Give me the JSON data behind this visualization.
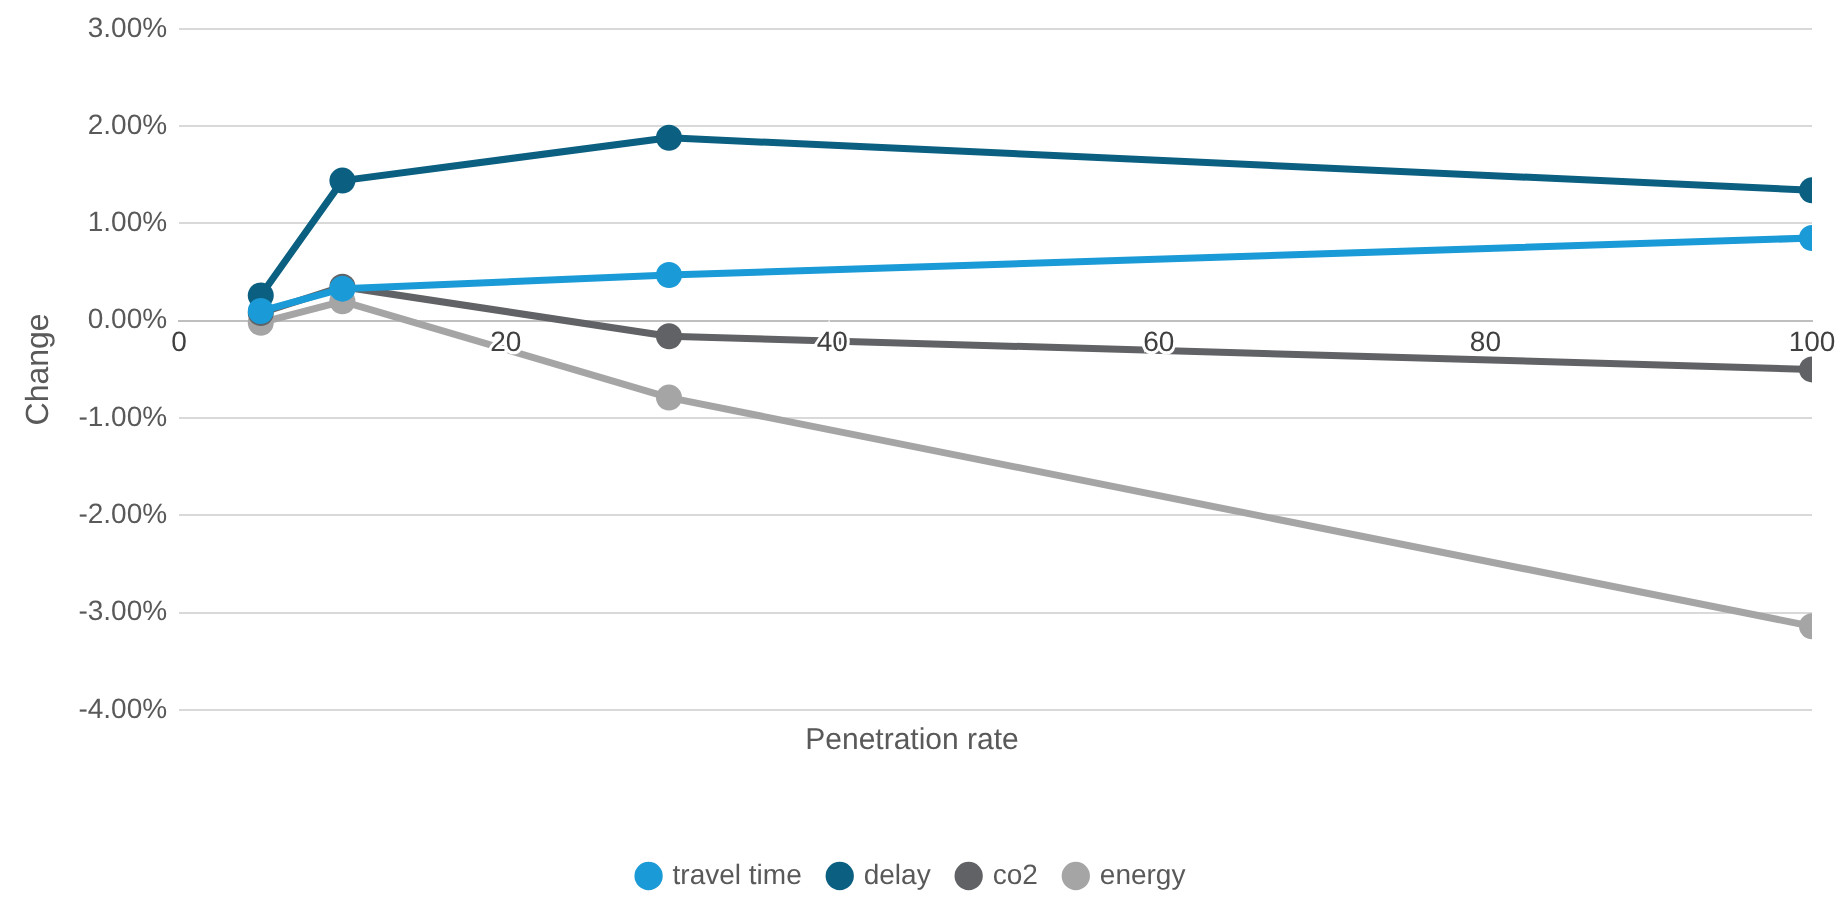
{
  "chart_data": {
    "type": "line",
    "xlabel": "Penetration rate",
    "ylabel": "Change",
    "x": [
      5,
      10,
      30,
      100
    ],
    "series": [
      {
        "name": "travel time",
        "color": "#1a9ad6",
        "values": [
          0.1,
          0.33,
          0.47,
          0.85
        ]
      },
      {
        "name": "delay",
        "color": "#0b5f80",
        "values": [
          0.26,
          1.44,
          1.88,
          1.34
        ]
      },
      {
        "name": "co2",
        "color": "#616265",
        "values": [
          0.08,
          0.35,
          -0.16,
          -0.5
        ]
      },
      {
        "name": "energy",
        "color": "#a5a5a5",
        "values": [
          -0.02,
          0.2,
          -0.79,
          -3.14
        ]
      }
    ],
    "xlim": [
      0,
      100
    ],
    "xticks": [
      0,
      20,
      40,
      60,
      80,
      100
    ],
    "ylim": [
      -4,
      3
    ],
    "yticks": [
      {
        "value": -4,
        "label": "-4.00%"
      },
      {
        "value": -3,
        "label": "-3.00%"
      },
      {
        "value": -2,
        "label": "-2.00%"
      },
      {
        "value": -1,
        "label": "-1.00%"
      },
      {
        "value": 0,
        "label": "0.00%"
      },
      {
        "value": 1,
        "label": "1.00%"
      },
      {
        "value": 2,
        "label": "2.00%"
      },
      {
        "value": 3,
        "label": "3.00%"
      }
    ],
    "grid": "y",
    "legend": "bottom",
    "marker": "circle",
    "line_style": "solid"
  }
}
